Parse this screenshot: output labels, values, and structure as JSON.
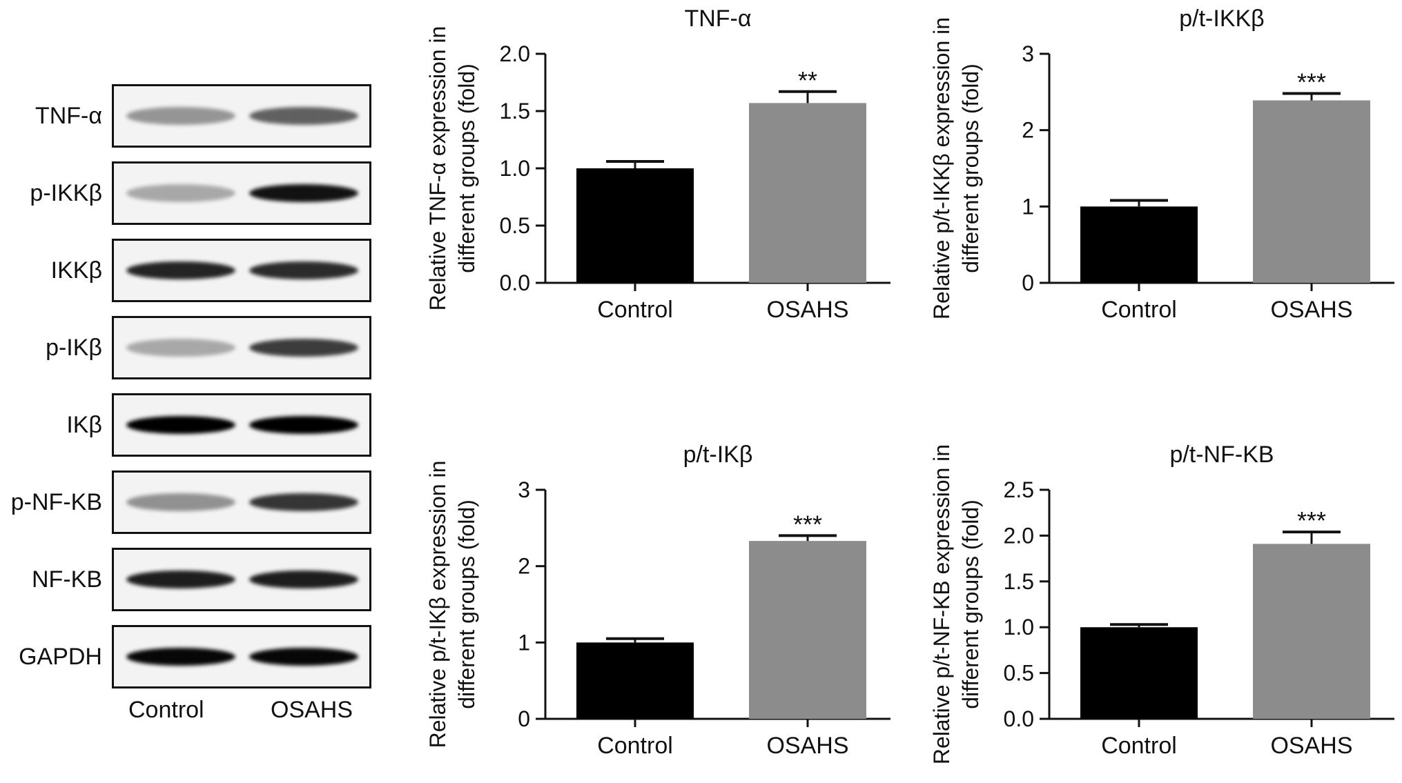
{
  "western_blot": {
    "rows": [
      {
        "label": "TNF-α",
        "intensity": [
          0.38,
          0.6
        ]
      },
      {
        "label": "p-IKKβ",
        "intensity": [
          0.3,
          0.92
        ]
      },
      {
        "label": "IKKβ",
        "intensity": [
          0.85,
          0.82
        ]
      },
      {
        "label": "p-IKβ",
        "intensity": [
          0.3,
          0.75
        ]
      },
      {
        "label": "IKβ",
        "intensity": [
          1.0,
          1.0
        ]
      },
      {
        "label": "p-NF-KB",
        "intensity": [
          0.4,
          0.78
        ]
      },
      {
        "label": "NF-KB",
        "intensity": [
          0.88,
          0.88
        ]
      },
      {
        "label": "GAPDH",
        "intensity": [
          0.97,
          0.97
        ]
      }
    ],
    "lanes": [
      "Control",
      "OSAHS"
    ]
  },
  "colors": {
    "control": "#000000",
    "osahs": "#8c8c8c"
  },
  "chart_data": [
    {
      "type": "bar",
      "title": "TNF-α",
      "ylabel": [
        "Relative TNF-α expression in",
        "different groups (fold)"
      ],
      "categories": [
        "Control",
        "OSAHS"
      ],
      "values": [
        1.0,
        1.57
      ],
      "errors": [
        0.06,
        0.1
      ],
      "significance": [
        "",
        "**"
      ],
      "ylim": [
        0,
        2.0
      ],
      "yticks": [
        0.0,
        0.5,
        1.0,
        1.5,
        2.0
      ],
      "tick_labels": [
        "0.0",
        "0.5",
        "1.0",
        "1.5",
        "2.0"
      ]
    },
    {
      "type": "bar",
      "title": "p/t-IKKβ",
      "ylabel": [
        "Relative p/t-IKKβ expression in",
        "different groups (fold)"
      ],
      "categories": [
        "Control",
        "OSAHS"
      ],
      "values": [
        1.0,
        2.39
      ],
      "errors": [
        0.08,
        0.09
      ],
      "significance": [
        "",
        "***"
      ],
      "ylim": [
        0,
        3
      ],
      "yticks": [
        0,
        1,
        2,
        3
      ],
      "tick_labels": [
        "0",
        "1",
        "2",
        "3"
      ]
    },
    {
      "type": "bar",
      "title": "p/t-IKβ",
      "ylabel": [
        "Relative p/t-IKβ expression in",
        "different groups (fold)"
      ],
      "categories": [
        "Control",
        "OSAHS"
      ],
      "values": [
        1.0,
        2.33
      ],
      "errors": [
        0.05,
        0.07
      ],
      "significance": [
        "",
        "***"
      ],
      "ylim": [
        0,
        3
      ],
      "yticks": [
        0,
        1,
        2,
        3
      ],
      "tick_labels": [
        "0",
        "1",
        "2",
        "3"
      ]
    },
    {
      "type": "bar",
      "title": "p/t-NF-KB",
      "ylabel": [
        "Relative p/t-NF-KB expression in",
        "different groups (fold)"
      ],
      "categories": [
        "Control",
        "OSAHS"
      ],
      "values": [
        1.0,
        1.91
      ],
      "errors": [
        0.03,
        0.13
      ],
      "significance": [
        "",
        "***"
      ],
      "ylim": [
        0,
        2.5
      ],
      "yticks": [
        0.0,
        0.5,
        1.0,
        1.5,
        2.0,
        2.5
      ],
      "tick_labels": [
        "0.0",
        "0.5",
        "1.0",
        "1.5",
        "2.0",
        "2.5"
      ]
    }
  ]
}
